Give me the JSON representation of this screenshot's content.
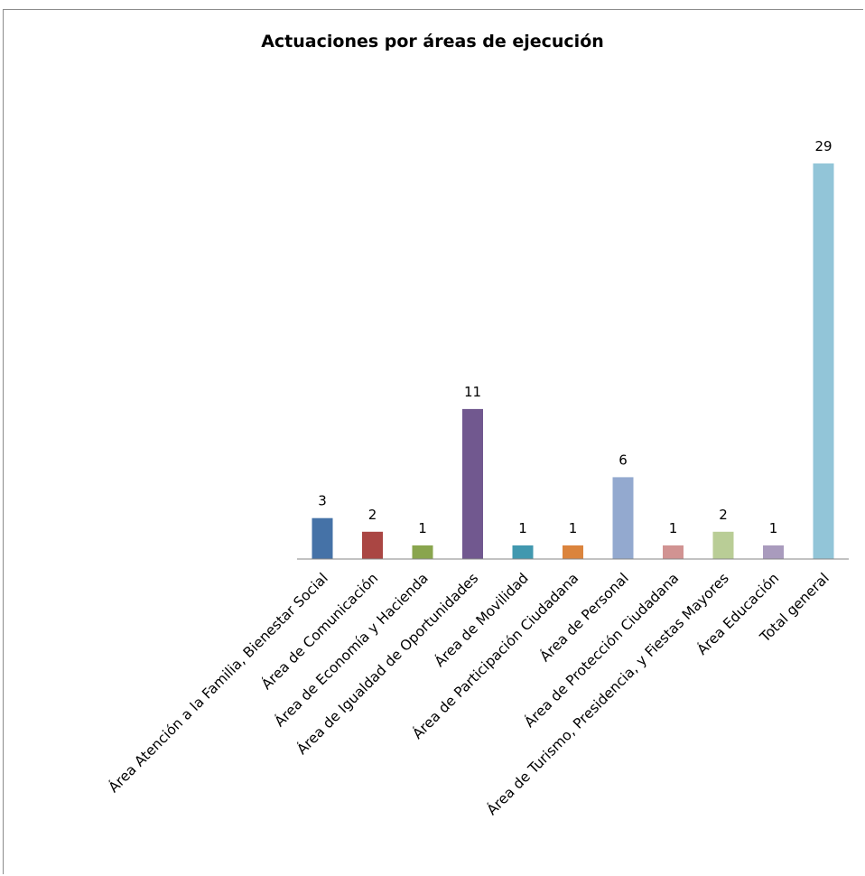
{
  "chart_data": {
    "type": "bar",
    "title": "Actuaciones por áreas de ejecución",
    "xlabel": "",
    "ylabel": "",
    "grid": false,
    "legend": "none",
    "ylim": [
      0,
      29
    ],
    "categories": [
      "Área Atención a la Familia, Bienestar Social",
      "Área de Comunicación",
      "Área de Economía y Hacienda",
      "Área de Igualdad de Oportunidades",
      "Área de Movilidad",
      "Área de Participación Ciudadana",
      "Área de Personal",
      "Área de Protección Ciudadana",
      "Área de Turismo,  Presidencia, y Fiestas Mayores",
      "Área Educación",
      "Total general"
    ],
    "values": [
      3,
      2,
      1,
      11,
      1,
      1,
      6,
      1,
      2,
      1,
      29
    ],
    "colors": [
      "#4572a7",
      "#aa4643",
      "#89a54e",
      "#71588f",
      "#4198af",
      "#db843d",
      "#93a9cf",
      "#d19392",
      "#b9cd96",
      "#a99bbd",
      "#92c5d8"
    ]
  }
}
